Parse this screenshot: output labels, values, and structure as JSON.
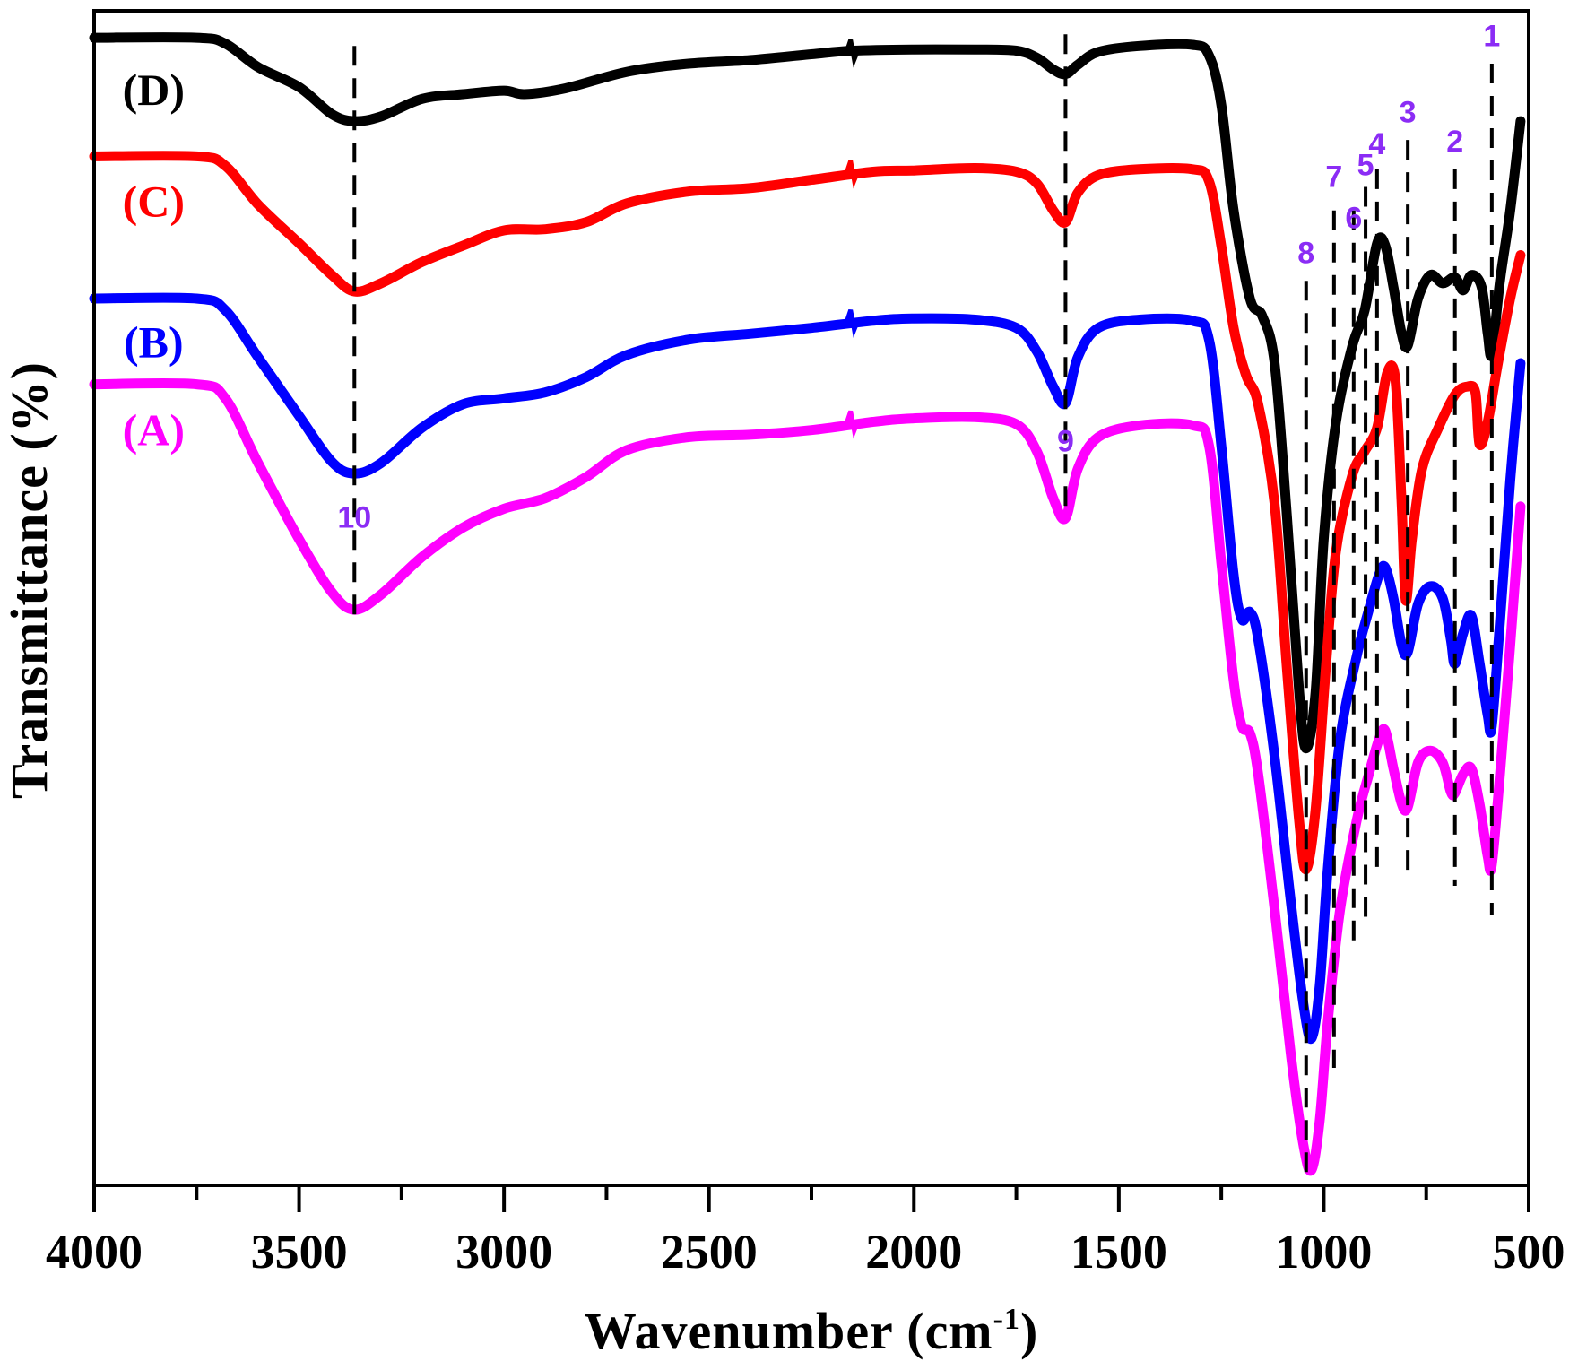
{
  "chart_data": {
    "type": "line",
    "title": "",
    "xlabel": "Wavenumber (cm",
    "xlabel_sup": "-1",
    "xlabel_close": ")",
    "ylabel": "Transmittance (%)",
    "xlim": [
      4000,
      500
    ],
    "ylim": [
      0,
      100
    ],
    "x_ticks": [
      4000,
      3500,
      3000,
      2500,
      2000,
      1500,
      1000,
      500
    ],
    "x_tick_labels": [
      "4000",
      "3500",
      "3000",
      "2500",
      "2000",
      "1500",
      "1000",
      "500"
    ],
    "x_minor_ticks": [
      3750,
      3250,
      2750,
      2250,
      1750,
      1250,
      750
    ],
    "y_ticks": [],
    "grid": false,
    "legend": "inline-left",
    "series": [
      {
        "name": "(D)",
        "color": "#000000",
        "points": [
          [
            4000,
            97.7
          ],
          [
            3750,
            97.7
          ],
          [
            3680,
            97.2
          ],
          [
            3600,
            95.2
          ],
          [
            3500,
            93.5
          ],
          [
            3420,
            91.2
          ],
          [
            3365,
            90.6
          ],
          [
            3300,
            91.0
          ],
          [
            3200,
            92.5
          ],
          [
            3100,
            92.9
          ],
          [
            3000,
            93.2
          ],
          [
            2950,
            92.9
          ],
          [
            2850,
            93.4
          ],
          [
            2700,
            94.8
          ],
          [
            2550,
            95.5
          ],
          [
            2400,
            95.8
          ],
          [
            2250,
            96.3
          ],
          [
            2150,
            96.6
          ],
          [
            2000,
            96.7
          ],
          [
            1850,
            96.7
          ],
          [
            1750,
            96.6
          ],
          [
            1700,
            96.0
          ],
          [
            1660,
            95.0
          ],
          [
            1630,
            94.6
          ],
          [
            1600,
            95.4
          ],
          [
            1550,
            96.5
          ],
          [
            1450,
            97.0
          ],
          [
            1320,
            97.1
          ],
          [
            1280,
            96.2
          ],
          [
            1250,
            92.0
          ],
          [
            1220,
            83.0
          ],
          [
            1180,
            75.5
          ],
          [
            1150,
            74.0
          ],
          [
            1120,
            70.0
          ],
          [
            1090,
            57.0
          ],
          [
            1060,
            42.0
          ],
          [
            1043,
            37.2
          ],
          [
            1020,
            42.0
          ],
          [
            1000,
            55.0
          ],
          [
            970,
            65.0
          ],
          [
            930,
            71.5
          ],
          [
            900,
            74.5
          ],
          [
            870,
            80.2
          ],
          [
            850,
            80.0
          ],
          [
            830,
            76.5
          ],
          [
            810,
            72.5
          ],
          [
            795,
            71.5
          ],
          [
            770,
            75.5
          ],
          [
            740,
            77.5
          ],
          [
            710,
            76.8
          ],
          [
            680,
            77.3
          ],
          [
            660,
            76.2
          ],
          [
            640,
            77.5
          ],
          [
            615,
            76.5
          ],
          [
            600,
            72.5
          ],
          [
            590,
            70.8
          ],
          [
            570,
            77.0
          ],
          [
            545,
            83.0
          ],
          [
            520,
            90.6
          ]
        ]
      },
      {
        "name": "(C)",
        "color": "#ff0000",
        "points": [
          [
            4000,
            87.6
          ],
          [
            3750,
            87.6
          ],
          [
            3680,
            86.8
          ],
          [
            3600,
            83.5
          ],
          [
            3500,
            80.2
          ],
          [
            3420,
            77.5
          ],
          [
            3365,
            76.1
          ],
          [
            3300,
            76.8
          ],
          [
            3200,
            78.6
          ],
          [
            3100,
            80.0
          ],
          [
            3000,
            81.3
          ],
          [
            2900,
            81.4
          ],
          [
            2800,
            82.0
          ],
          [
            2700,
            83.6
          ],
          [
            2550,
            84.6
          ],
          [
            2400,
            84.9
          ],
          [
            2250,
            85.6
          ],
          [
            2100,
            86.3
          ],
          [
            2000,
            86.4
          ],
          [
            1850,
            86.6
          ],
          [
            1750,
            86.3
          ],
          [
            1700,
            85.3
          ],
          [
            1660,
            83.0
          ],
          [
            1630,
            82.0
          ],
          [
            1600,
            84.5
          ],
          [
            1550,
            86.0
          ],
          [
            1450,
            86.5
          ],
          [
            1320,
            86.5
          ],
          [
            1280,
            85.5
          ],
          [
            1250,
            80.0
          ],
          [
            1220,
            73.0
          ],
          [
            1190,
            69.0
          ],
          [
            1160,
            66.5
          ],
          [
            1120,
            58.0
          ],
          [
            1090,
            44.0
          ],
          [
            1060,
            31.0
          ],
          [
            1043,
            26.9
          ],
          [
            1020,
            32.0
          ],
          [
            995,
            44.0
          ],
          [
            970,
            54.0
          ],
          [
            930,
            60.5
          ],
          [
            900,
            62.5
          ],
          [
            870,
            64.5
          ],
          [
            845,
            69.2
          ],
          [
            825,
            68.5
          ],
          [
            810,
            58.0
          ],
          [
            800,
            49.8
          ],
          [
            785,
            55.0
          ],
          [
            760,
            61.0
          ],
          [
            720,
            64.5
          ],
          [
            680,
            67.3
          ],
          [
            650,
            68.0
          ],
          [
            630,
            67.5
          ],
          [
            620,
            63.1
          ],
          [
            600,
            65.0
          ],
          [
            575,
            70.0
          ],
          [
            545,
            75.5
          ],
          [
            520,
            79.2
          ]
        ]
      },
      {
        "name": "(B)",
        "color": "#0000ff",
        "points": [
          [
            4000,
            75.5
          ],
          [
            3750,
            75.5
          ],
          [
            3680,
            74.5
          ],
          [
            3600,
            70.5
          ],
          [
            3500,
            65.5
          ],
          [
            3420,
            61.6
          ],
          [
            3365,
            60.6
          ],
          [
            3300,
            61.5
          ],
          [
            3200,
            64.5
          ],
          [
            3100,
            66.5
          ],
          [
            3000,
            67.0
          ],
          [
            2900,
            67.5
          ],
          [
            2800,
            68.8
          ],
          [
            2700,
            70.7
          ],
          [
            2550,
            72.0
          ],
          [
            2400,
            72.5
          ],
          [
            2250,
            73.0
          ],
          [
            2100,
            73.6
          ],
          [
            2000,
            73.8
          ],
          [
            1850,
            73.7
          ],
          [
            1750,
            73.0
          ],
          [
            1700,
            71.0
          ],
          [
            1660,
            68.0
          ],
          [
            1630,
            66.6
          ],
          [
            1600,
            70.5
          ],
          [
            1550,
            73.0
          ],
          [
            1450,
            73.7
          ],
          [
            1320,
            73.6
          ],
          [
            1280,
            72.0
          ],
          [
            1250,
            63.0
          ],
          [
            1220,
            52.0
          ],
          [
            1200,
            48.2
          ],
          [
            1180,
            48.8
          ],
          [
            1160,
            46.5
          ],
          [
            1120,
            36.5
          ],
          [
            1080,
            24.0
          ],
          [
            1050,
            15.5
          ],
          [
            1030,
            12.5
          ],
          [
            1010,
            17.0
          ],
          [
            990,
            27.0
          ],
          [
            960,
            38.0
          ],
          [
            920,
            45.0
          ],
          [
            890,
            49.0
          ],
          [
            865,
            52.0
          ],
          [
            850,
            52.6
          ],
          [
            830,
            50.0
          ],
          [
            810,
            46.0
          ],
          [
            795,
            45.4
          ],
          [
            770,
            49.5
          ],
          [
            740,
            51.0
          ],
          [
            710,
            50.0
          ],
          [
            690,
            46.5
          ],
          [
            680,
            44.4
          ],
          [
            660,
            47.0
          ],
          [
            640,
            48.5
          ],
          [
            620,
            44.5
          ],
          [
            600,
            40.0
          ],
          [
            590,
            39.1
          ],
          [
            570,
            48.0
          ],
          [
            545,
            60.0
          ],
          [
            520,
            70.0
          ]
        ]
      },
      {
        "name": "(A)",
        "color": "#ff00ff",
        "points": [
          [
            4000,
            68.2
          ],
          [
            3750,
            68.2
          ],
          [
            3680,
            67.0
          ],
          [
            3600,
            61.5
          ],
          [
            3500,
            55.0
          ],
          [
            3420,
            50.5
          ],
          [
            3365,
            49.0
          ],
          [
            3300,
            50.3
          ],
          [
            3200,
            53.5
          ],
          [
            3100,
            56.0
          ],
          [
            3000,
            57.6
          ],
          [
            2900,
            58.5
          ],
          [
            2800,
            60.3
          ],
          [
            2700,
            62.6
          ],
          [
            2550,
            63.7
          ],
          [
            2400,
            63.9
          ],
          [
            2250,
            64.3
          ],
          [
            2100,
            65.0
          ],
          [
            2000,
            65.3
          ],
          [
            1850,
            65.4
          ],
          [
            1750,
            64.8
          ],
          [
            1700,
            62.5
          ],
          [
            1660,
            58.5
          ],
          [
            1630,
            56.8
          ],
          [
            1600,
            61.0
          ],
          [
            1550,
            63.7
          ],
          [
            1450,
            64.7
          ],
          [
            1320,
            64.7
          ],
          [
            1280,
            63.0
          ],
          [
            1250,
            53.0
          ],
          [
            1220,
            43.0
          ],
          [
            1200,
            39.1
          ],
          [
            1180,
            38.5
          ],
          [
            1160,
            35.0
          ],
          [
            1120,
            23.5
          ],
          [
            1080,
            11.0
          ],
          [
            1050,
            3.5
          ],
          [
            1030,
            1.3
          ],
          [
            1010,
            5.5
          ],
          [
            990,
            14.0
          ],
          [
            960,
            23.5
          ],
          [
            920,
            31.0
          ],
          [
            890,
            35.0
          ],
          [
            865,
            38.0
          ],
          [
            850,
            38.7
          ],
          [
            830,
            35.5
          ],
          [
            810,
            32.5
          ],
          [
            795,
            32.2
          ],
          [
            770,
            36.0
          ],
          [
            740,
            37.0
          ],
          [
            710,
            36.0
          ],
          [
            690,
            33.5
          ],
          [
            680,
            33.4
          ],
          [
            660,
            35.0
          ],
          [
            640,
            35.5
          ],
          [
            620,
            32.5
          ],
          [
            600,
            28.0
          ],
          [
            590,
            27.3
          ],
          [
            570,
            35.0
          ],
          [
            545,
            46.0
          ],
          [
            520,
            57.8
          ]
        ]
      }
    ],
    "series_labels": [
      {
        "text": "(D)",
        "color": "#000000",
        "x": 3855,
        "y": 92.0
      },
      {
        "text": "(C)",
        "color": "#ff0000",
        "x": 3855,
        "y": 82.5
      },
      {
        "text": "(B)",
        "color": "#0000ff",
        "x": 3855,
        "y": 70.5
      },
      {
        "text": "(A)",
        "color": "#ff00ff",
        "x": 3855,
        "y": 63.0
      }
    ],
    "peak_markers": [
      {
        "label": "1",
        "x": 590,
        "label_y": 97.0,
        "line_from": 95.5,
        "line_to": 23.0
      },
      {
        "label": "2",
        "x": 680,
        "label_y": 88.0,
        "line_from": 86.5,
        "line_to": 25.5
      },
      {
        "label": "3",
        "x": 795,
        "label_y": 90.5,
        "line_from": 89.0,
        "line_to": 26.0
      },
      {
        "label": "4",
        "x": 870,
        "label_y": 87.8,
        "line_from": 86.5,
        "line_to": 26.5
      },
      {
        "label": "5",
        "x": 898,
        "label_y": 86.0,
        "line_from": 85.0,
        "line_to": 22.5
      },
      {
        "label": "6",
        "x": 927,
        "label_y": 81.5,
        "line_from": 83.0,
        "line_to": 20.5
      },
      {
        "label": "7",
        "x": 975,
        "label_y": 85.0,
        "line_from": 83.0,
        "line_to": 10.0
      },
      {
        "label": "8",
        "x": 1043,
        "label_y": 78.5,
        "line_from": 77.0,
        "line_to": 0.5
      },
      {
        "label": "9",
        "x": 1630,
        "label_y": 62.5,
        "line_from": 98.0,
        "line_to": 57.0
      },
      {
        "label": "10",
        "x": 3365,
        "label_y": 56.0,
        "line_from": 97.0,
        "line_to": 48.0
      }
    ],
    "peak_label_color": "#8b2cf5"
  }
}
